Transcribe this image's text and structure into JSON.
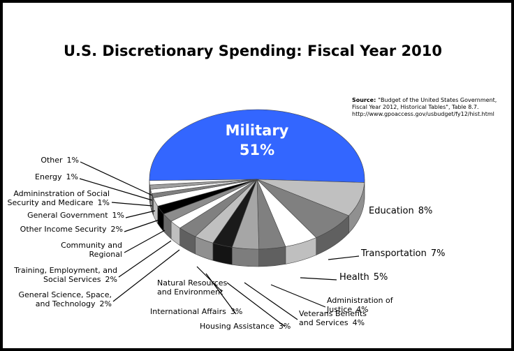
{
  "chart_data": {
    "type": "pie",
    "title": "U.S. Discretionary Spending: Fiscal Year 2010",
    "source": {
      "label": "Source:",
      "lines": [
        "\"Budget of the United States Government,",
        "Fiscal Year 2012, Historical Tables\", Table 8.7.",
        "http://www.gpoaccess.gov/usbudget/fy12/hist.html"
      ]
    },
    "categories": [
      "Military",
      "Education",
      "Transportation",
      "Health",
      "Administration of\nJustice",
      "Veterans Benefits\nand Services",
      "Housing Assistance",
      "International Affairs",
      "Natural Resources\nand  Environment",
      "General Science, Space,\nand Technology",
      "Training, Employment, and\nSocial Services",
      "Community and\nRegional",
      "Other Income Security",
      "General Government",
      "Admininstration of Social\nSecurity and Medicare",
      "Energy",
      "Other"
    ],
    "values": [
      51,
      8,
      7,
      5,
      4,
      4,
      3,
      3,
      3,
      2,
      2,
      2,
      2,
      1,
      1,
      1,
      1
    ],
    "value_labels": [
      "51%",
      "8%",
      "7%",
      "5%",
      "4%",
      "4%",
      "3%",
      "3%",
      null,
      "2%",
      "2%",
      null,
      "2%",
      "1%",
      "1%",
      "1%",
      "1%"
    ],
    "colors": [
      "#3366ff",
      "#c0c0c0",
      "#808080",
      "#ffffff",
      "#808080",
      "#a6a6a6",
      "#1a1a1a",
      "#c0c0c0",
      "#808080",
      "#ffffff",
      "#8c8c8c",
      "#000000",
      "#ffffff",
      "#808080",
      "#ffffff",
      "#a0a0a0",
      "#ffffff"
    ]
  }
}
